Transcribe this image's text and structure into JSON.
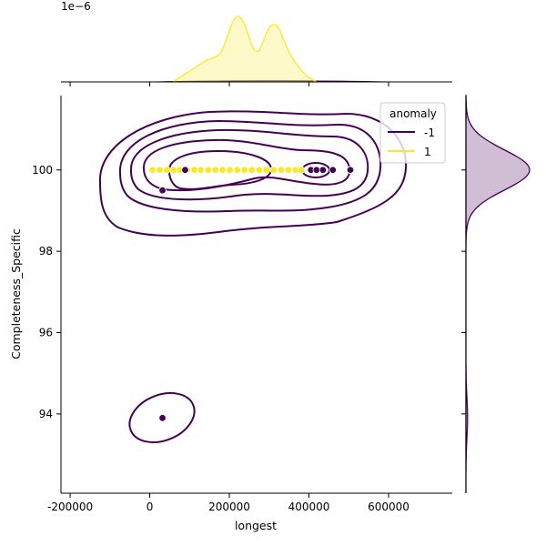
{
  "chart_data": {
    "type": "scatter",
    "kind": "jointplot with KDE contours and marginal KDEs",
    "xlabel": "longest",
    "ylabel": "Completeness_Specific",
    "xlim": [
      -223000,
      760000
    ],
    "ylim": [
      92.05,
      101.83
    ],
    "x_ticks": [
      "-200000",
      "0",
      "200000",
      "400000",
      "600000"
    ],
    "x_tick_values": [
      -200000,
      0,
      200000,
      400000,
      600000
    ],
    "y_ticks": [
      "94",
      "96",
      "98",
      "100"
    ],
    "y_tick_values": [
      94,
      96,
      98,
      100
    ],
    "top_marginal_offset": "1e−6",
    "grid": false,
    "legend": {
      "title": "anomaly",
      "placement": "top-right",
      "entries": [
        "-1",
        "1"
      ]
    },
    "colors": {
      "-1": "#440154",
      "1": "#fde725"
    },
    "series": [
      {
        "name": "-1",
        "x": [
          89000,
          32000,
          405000,
          419000,
          435000,
          460000,
          504000,
          32000
        ],
        "y": [
          100,
          99.5,
          100,
          100,
          100,
          100,
          100,
          93.9
        ]
      },
      {
        "name": "1",
        "x": [
          7000,
          25000,
          43000,
          60000,
          76000,
          94000,
          112000,
          128000,
          147000,
          165000,
          183000,
          201000,
          220000,
          238000,
          256000,
          275000,
          293000,
          311000,
          330000,
          348000,
          366000,
          380000
        ],
        "y": [
          100,
          100,
          100,
          100,
          100,
          100,
          100,
          100,
          100,
          100,
          100,
          100,
          100,
          100,
          100,
          100,
          100,
          100,
          100,
          100,
          100,
          100
        ]
      }
    ]
  }
}
